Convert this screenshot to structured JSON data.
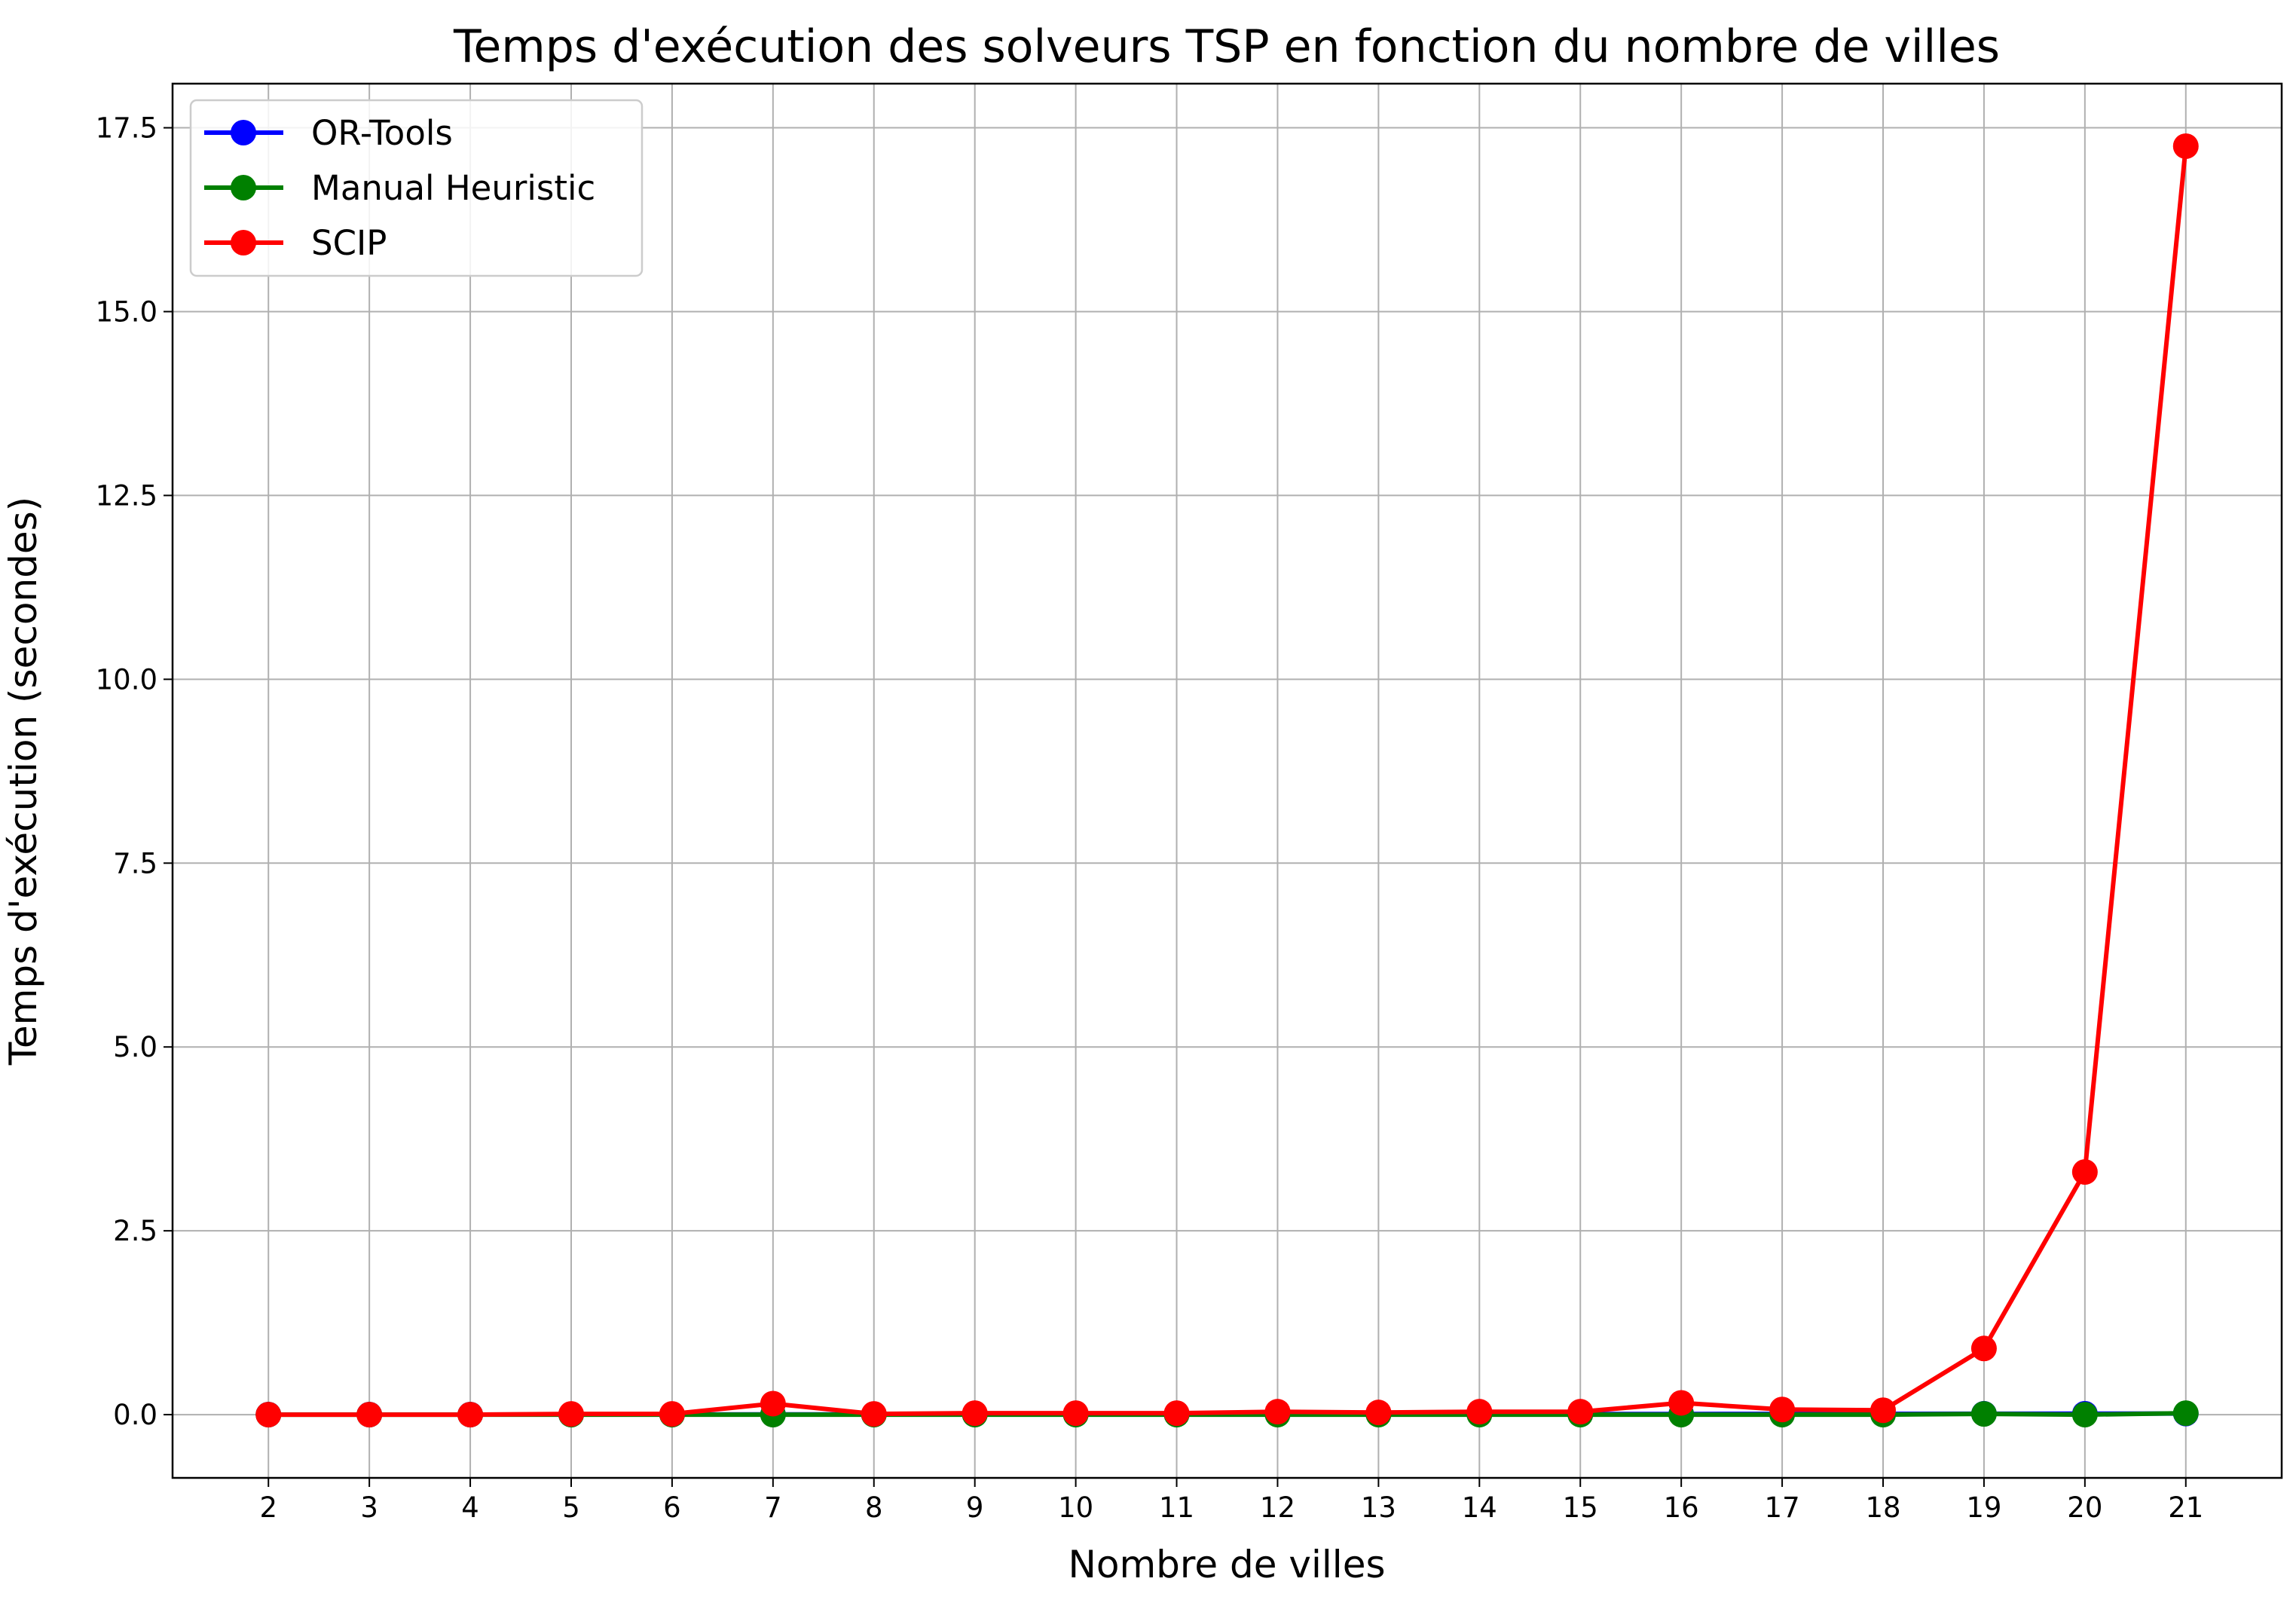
{
  "chart_data": {
    "type": "line",
    "title": "Temps d'exécution des solveurs TSP en fonction du nombre de villes",
    "xlabel": "Nombre de villes",
    "ylabel": "Temps d'exécution (secondes)",
    "x": [
      2,
      3,
      4,
      5,
      6,
      7,
      8,
      9,
      10,
      11,
      12,
      13,
      14,
      15,
      16,
      17,
      18,
      19,
      20,
      21
    ],
    "xlim": [
      1.05,
      21.95
    ],
    "ylim": [
      -0.86,
      18.1
    ],
    "yticks": [
      0.0,
      2.5,
      5.0,
      7.5,
      10.0,
      12.5,
      15.0,
      17.5
    ],
    "ytick_labels": [
      "0.0",
      "2.5",
      "5.0",
      "7.5",
      "10.0",
      "12.5",
      "15.0",
      "17.5"
    ],
    "grid": true,
    "legend_position": "top-left",
    "series": [
      {
        "name": "OR-Tools",
        "color": "#0000ff",
        "values": [
          0.001,
          0.001,
          0.001,
          0.002,
          0.002,
          0.003,
          0.003,
          0.004,
          0.004,
          0.005,
          0.006,
          0.006,
          0.007,
          0.008,
          0.009,
          0.01,
          0.011,
          0.012,
          0.013,
          0.015
        ]
      },
      {
        "name": "Manual Heuristic",
        "color": "#008000",
        "values": [
          0.0,
          0.0,
          0.0,
          0.0,
          0.0,
          0.0,
          0.0,
          0.0,
          0.0,
          0.0,
          0.0,
          0.0,
          0.0,
          0.0,
          0.0,
          0.0,
          0.0,
          0.01,
          0.0,
          0.02
        ]
      },
      {
        "name": "SCIP",
        "color": "#ff0000",
        "values": [
          0.0,
          0.0,
          0.0,
          0.01,
          0.01,
          0.15,
          0.01,
          0.02,
          0.02,
          0.02,
          0.04,
          0.03,
          0.04,
          0.04,
          0.16,
          0.07,
          0.06,
          0.9,
          3.3,
          17.25
        ]
      }
    ]
  }
}
